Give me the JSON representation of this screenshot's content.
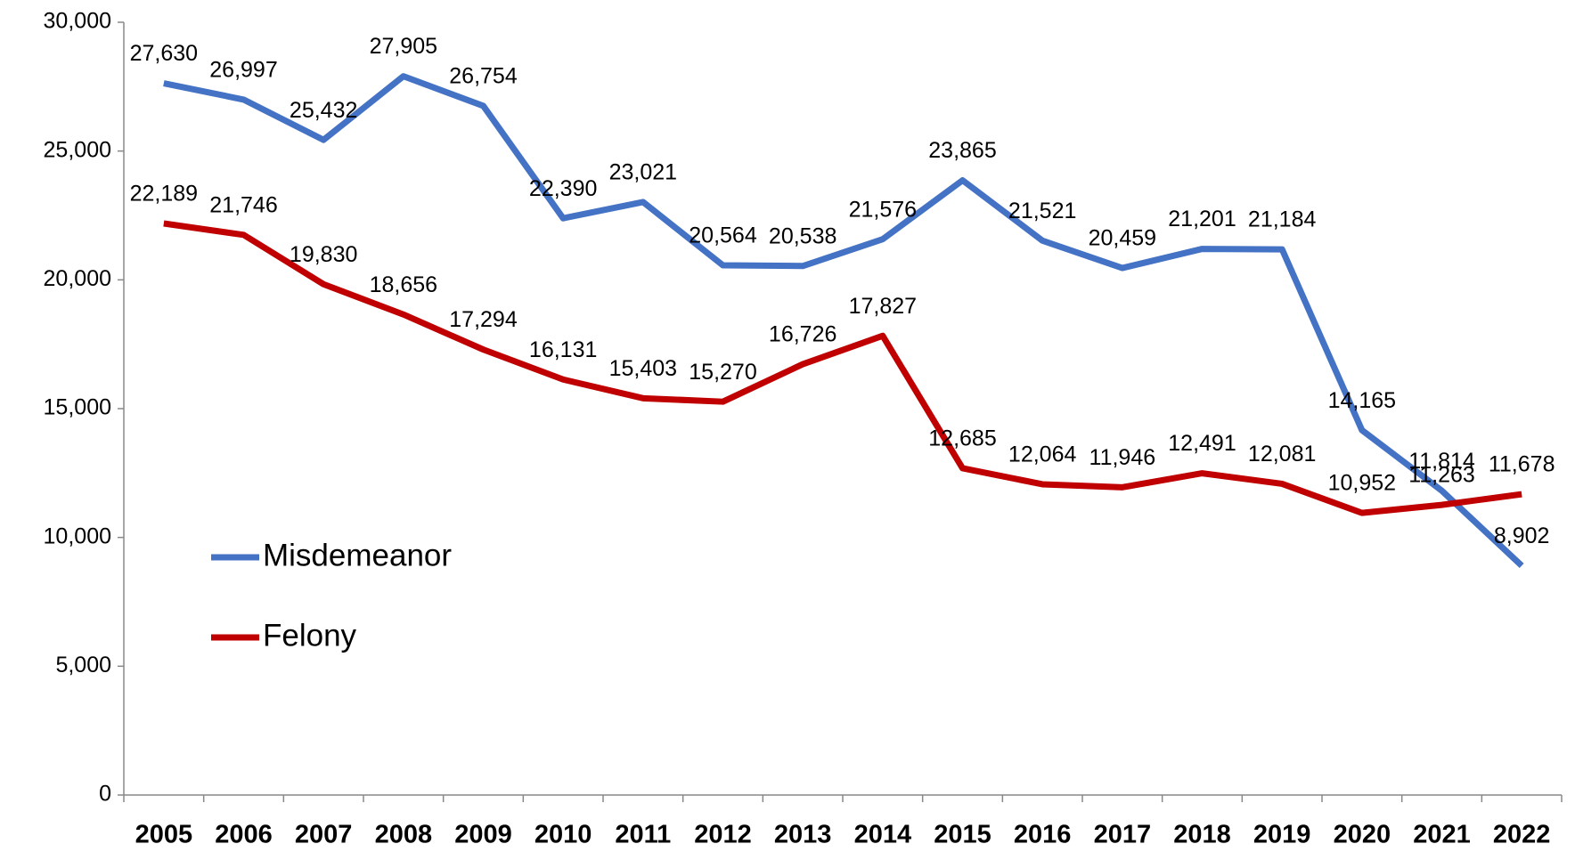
{
  "chart_data": {
    "type": "line",
    "categories": [
      "2005",
      "2006",
      "2007",
      "2008",
      "2009",
      "2010",
      "2011",
      "2012",
      "2013",
      "2014",
      "2015",
      "2016",
      "2017",
      "2018",
      "2019",
      "2020",
      "2021",
      "2022"
    ],
    "series": [
      {
        "name": "Misdemeanor",
        "color": "#4472c4",
        "values": [
          27630,
          26997,
          25432,
          27905,
          26754,
          22390,
          23021,
          20564,
          20538,
          21576,
          23865,
          21521,
          20459,
          21201,
          21184,
          14165,
          11814,
          8902
        ],
        "value_labels": [
          "27,630",
          "26,997",
          "25,432",
          "27,905",
          "26,754",
          "22,390",
          "23,021",
          "20,564",
          "20,538",
          "21,576",
          "23,865",
          "21,521",
          "20,459",
          "21,201",
          "21,184",
          "14,165",
          "11,814",
          "8,902"
        ]
      },
      {
        "name": "Felony",
        "color": "#c00000",
        "values": [
          22189,
          21746,
          19830,
          18656,
          17294,
          16131,
          15403,
          15270,
          16726,
          17827,
          12685,
          12064,
          11946,
          12491,
          12081,
          10952,
          11263,
          11678
        ],
        "value_labels": [
          "22,189",
          "21,746",
          "19,830",
          "18,656",
          "17,294",
          "16,131",
          "15,403",
          "15,270",
          "16,726",
          "17,827",
          "12,685",
          "12,064",
          "11,946",
          "12,491",
          "12,081",
          "10,952",
          "11,263",
          "11,678"
        ]
      }
    ],
    "ylim": [
      0,
      30000
    ],
    "yticks": [
      0,
      {
        "value": 5000,
        "label": "5,000"
      },
      {
        "value": 10000,
        "label": "10,000"
      },
      {
        "value": 15000,
        "label": "15,000"
      },
      {
        "value": 20000,
        "label": "20,000"
      },
      {
        "value": 25000,
        "label": "25,000"
      },
      {
        "value": 30000,
        "label": "30,000"
      }
    ],
    "legend": "left"
  }
}
